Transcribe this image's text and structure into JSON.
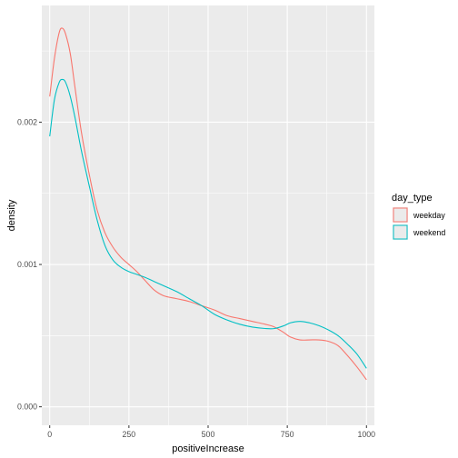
{
  "chart_data": {
    "type": "line",
    "xlabel": "positiveIncrease",
    "ylabel": "density",
    "xlim": [
      -25,
      1025
    ],
    "ylim": [
      -0.00013,
      0.00282
    ],
    "x_ticks": [
      {
        "value": 0,
        "label": "0"
      },
      {
        "value": 250,
        "label": "250"
      },
      {
        "value": 500,
        "label": "500"
      },
      {
        "value": 750,
        "label": "750"
      },
      {
        "value": 1000,
        "label": "1000"
      }
    ],
    "y_ticks": [
      {
        "value": 0.0,
        "label": "0.000"
      },
      {
        "value": 0.001,
        "label": "0.001"
      },
      {
        "value": 0.002,
        "label": "0.002"
      }
    ],
    "grid": true,
    "panel_background": "#ebebeb",
    "grid_color": "#ffffff",
    "legend": {
      "title": "day_type",
      "position": "right"
    },
    "series": [
      {
        "name": "weekday",
        "color": "#F8766D",
        "x": [
          0,
          15,
          30,
          40,
          50,
          65,
          80,
          100,
          125,
          150,
          175,
          200,
          225,
          250,
          275,
          300,
          330,
          360,
          400,
          440,
          480,
          520,
          560,
          600,
          640,
          680,
          710,
          740,
          760,
          790,
          820,
          850,
          880,
          910,
          940,
          970,
          1000
        ],
        "y": [
          0.00218,
          0.00245,
          0.00263,
          0.00266,
          0.00262,
          0.00248,
          0.00224,
          0.00193,
          0.00163,
          0.00138,
          0.00122,
          0.00112,
          0.00105,
          0.001,
          0.00095,
          0.00089,
          0.00082,
          0.00078,
          0.00076,
          0.00074,
          0.00071,
          0.00068,
          0.00064,
          0.00062,
          0.0006,
          0.00058,
          0.00056,
          0.00052,
          0.00049,
          0.00047,
          0.00047,
          0.00047,
          0.00046,
          0.00043,
          0.00036,
          0.00028,
          0.00019
        ]
      },
      {
        "name": "weekend",
        "color": "#00BFC4",
        "x": [
          0,
          15,
          30,
          40,
          50,
          65,
          80,
          100,
          125,
          150,
          175,
          200,
          225,
          250,
          275,
          300,
          330,
          360,
          400,
          440,
          480,
          520,
          560,
          600,
          640,
          680,
          710,
          740,
          760,
          790,
          820,
          850,
          880,
          910,
          940,
          970,
          1000
        ],
        "y": [
          0.0019,
          0.00216,
          0.00228,
          0.0023,
          0.00228,
          0.00218,
          0.00203,
          0.0018,
          0.00155,
          0.00131,
          0.00113,
          0.00103,
          0.00098,
          0.00095,
          0.00093,
          0.00091,
          0.00088,
          0.00085,
          0.00081,
          0.00076,
          0.00071,
          0.00065,
          0.00061,
          0.00058,
          0.00056,
          0.00055,
          0.00055,
          0.00057,
          0.00059,
          0.0006,
          0.00059,
          0.00057,
          0.00054,
          0.0005,
          0.00044,
          0.00037,
          0.00027
        ]
      }
    ]
  }
}
